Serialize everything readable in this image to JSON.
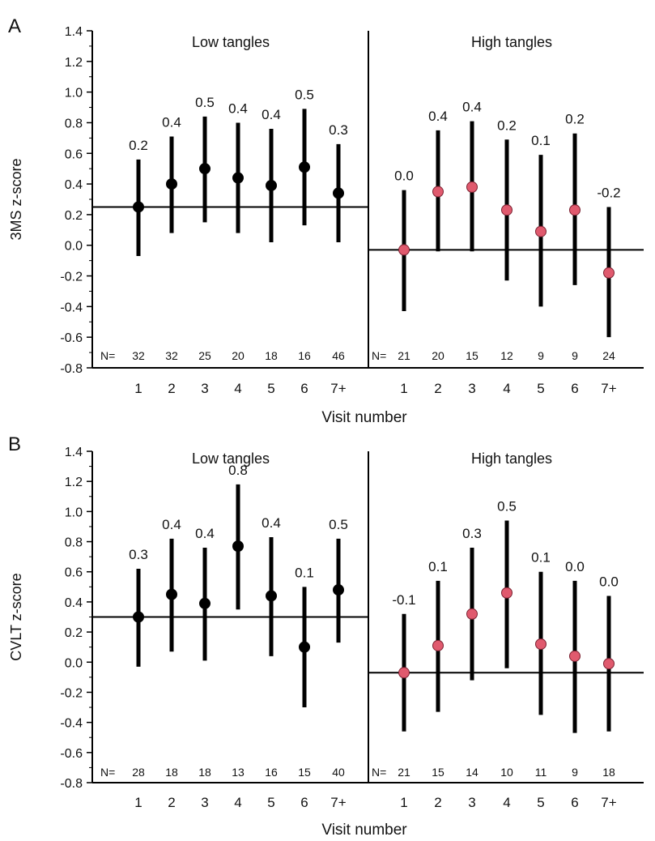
{
  "chart_data": [
    {
      "panel_label": "A",
      "type": "scatter",
      "ylabel": "3MS z-score",
      "xlabel": "Visit number",
      "ylim": [
        -0.8,
        1.4
      ],
      "yticks": [
        "1.4",
        "1.2",
        "1.0",
        "0.8",
        "0.6",
        "0.4",
        "0.2",
        "0.0",
        "-0.2",
        "-0.4",
        "-0.6",
        "-0.8"
      ],
      "x": [
        "1",
        "2",
        "3",
        "4",
        "5",
        "6",
        "7+"
      ],
      "n_label": "N=",
      "groups": [
        {
          "name": "Low tangles",
          "marker_color": "#000000",
          "reference_line": 0.25,
          "means": [
            0.25,
            0.4,
            0.5,
            0.44,
            0.39,
            0.51,
            0.34
          ],
          "lower": [
            -0.07,
            0.08,
            0.15,
            0.08,
            0.02,
            0.13,
            0.02
          ],
          "upper": [
            0.56,
            0.71,
            0.84,
            0.8,
            0.76,
            0.89,
            0.66
          ],
          "value_labels": [
            "0.2",
            "0.4",
            "0.5",
            "0.4",
            "0.4",
            "0.5",
            "0.3"
          ],
          "n": [
            "32",
            "32",
            "25",
            "20",
            "18",
            "16",
            "46"
          ]
        },
        {
          "name": "High tangles",
          "marker_color": "#e05a6e",
          "reference_line": -0.03,
          "means": [
            -0.03,
            0.35,
            0.38,
            0.23,
            0.09,
            0.23,
            -0.18
          ],
          "lower": [
            -0.43,
            -0.04,
            -0.04,
            -0.23,
            -0.4,
            -0.26,
            -0.6
          ],
          "upper": [
            0.36,
            0.75,
            0.81,
            0.69,
            0.59,
            0.73,
            0.25
          ],
          "value_labels": [
            "0.0",
            "0.4",
            "0.4",
            "0.2",
            "0.1",
            "0.2",
            "-0.2"
          ],
          "n": [
            "21",
            "20",
            "15",
            "12",
            "9",
            "9",
            "24"
          ]
        }
      ]
    },
    {
      "panel_label": "B",
      "type": "scatter",
      "ylabel": "CVLT z-score",
      "xlabel": "Visit number",
      "ylim": [
        -0.8,
        1.4
      ],
      "yticks": [
        "1.4",
        "1.2",
        "1.0",
        "0.8",
        "0.6",
        "0.4",
        "0.2",
        "0.0",
        "-0.2",
        "-0.4",
        "-0.6",
        "-0.8"
      ],
      "x": [
        "1",
        "2",
        "3",
        "4",
        "5",
        "6",
        "7+"
      ],
      "n_label": "N=",
      "groups": [
        {
          "name": "Low tangles",
          "marker_color": "#000000",
          "reference_line": 0.3,
          "means": [
            0.3,
            0.45,
            0.39,
            0.77,
            0.44,
            0.1,
            0.48
          ],
          "lower": [
            -0.03,
            0.07,
            0.01,
            0.35,
            0.04,
            -0.3,
            0.13
          ],
          "upper": [
            0.62,
            0.82,
            0.76,
            1.18,
            0.83,
            0.5,
            0.82
          ],
          "value_labels": [
            "0.3",
            "0.4",
            "0.4",
            "0.8",
            "0.4",
            "0.1",
            "0.5"
          ],
          "n": [
            "28",
            "18",
            "18",
            "13",
            "16",
            "15",
            "40"
          ]
        },
        {
          "name": "High tangles",
          "marker_color": "#e05a6e",
          "reference_line": -0.07,
          "means": [
            -0.07,
            0.11,
            0.32,
            0.46,
            0.12,
            0.04,
            -0.01
          ],
          "lower": [
            -0.46,
            -0.33,
            -0.12,
            -0.04,
            -0.35,
            -0.47,
            -0.46
          ],
          "upper": [
            0.32,
            0.54,
            0.76,
            0.94,
            0.6,
            0.54,
            0.44
          ],
          "value_labels": [
            "-0.1",
            "0.1",
            "0.3",
            "0.5",
            "0.1",
            "0.0",
            "0.0"
          ],
          "n": [
            "21",
            "15",
            "14",
            "10",
            "11",
            "9",
            "18"
          ]
        }
      ]
    }
  ]
}
